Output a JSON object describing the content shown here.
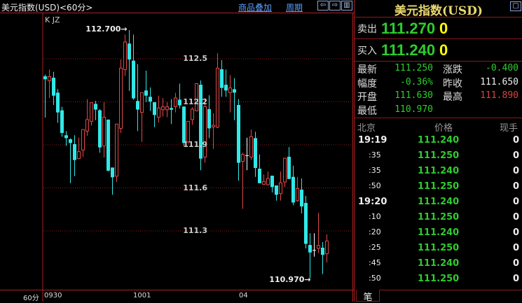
{
  "header": {
    "title": "美元指数(USD)<60分>",
    "overlay_link": "商品叠加",
    "period_link": "周期",
    "icons": [
      "arrow-left-icon",
      "arrow-right-icon",
      "panel-toggle-icon"
    ]
  },
  "chart": {
    "indicator_label": "K JZ",
    "period_label": "60分",
    "max_label": "112.700→",
    "min_label": "110.970→"
  },
  "chart_data": {
    "type": "candlestick",
    "yticks": [
      112.5,
      112.2,
      111.9,
      111.6,
      111.3
    ],
    "xticks": [
      "0930",
      "1001",
      "04"
    ],
    "grid": true,
    "colors": {
      "up": "#e04848",
      "down": "#30e8e8",
      "doji": "#ffffff",
      "grid": "#8a1a1a"
    },
    "ohlc": [
      [
        112.378,
        112.39,
        112.09,
        112.357
      ],
      [
        112.347,
        112.425,
        112.227,
        112.376
      ],
      [
        112.368,
        112.409,
        112.178,
        112.243
      ],
      [
        112.264,
        112.289,
        112.053,
        112.126
      ],
      [
        112.141,
        112.165,
        111.957,
        111.983
      ],
      [
        111.967,
        111.996,
        111.894,
        111.947
      ],
      [
        111.939,
        111.945,
        111.633,
        111.913
      ],
      [
        111.905,
        111.967,
        111.682,
        111.794
      ],
      [
        111.804,
        111.95,
        111.8,
        111.853
      ],
      [
        111.864,
        112.01,
        111.815,
        112.007
      ],
      [
        111.996,
        112.219,
        111.963,
        112.076
      ],
      [
        112.064,
        112.194,
        112.035,
        112.194
      ],
      [
        112.186,
        112.207,
        112.072,
        112.146
      ],
      [
        112.141,
        112.15,
        111.845,
        111.882
      ],
      [
        111.893,
        112.197,
        111.812,
        112.093
      ],
      [
        112.076,
        112.076,
        111.715,
        111.72
      ],
      [
        111.742,
        111.742,
        111.552,
        111.674
      ],
      [
        111.682,
        112.045,
        111.641,
        112.045
      ],
      [
        112.015,
        112.495,
        111.983,
        112.435
      ],
      [
        112.425,
        112.669,
        112.381,
        112.617
      ],
      [
        112.606,
        112.7,
        112.276,
        112.495
      ],
      [
        112.487,
        112.669,
        112.214,
        112.224
      ],
      [
        112.206,
        112.463,
        111.996,
        112.146
      ],
      [
        112.126,
        112.264,
        111.921,
        112.264
      ],
      [
        112.279,
        112.417,
        112.198,
        112.243
      ],
      [
        112.235,
        112.3,
        112.137,
        112.202
      ],
      [
        112.197,
        112.197,
        112.024,
        112.108
      ],
      [
        112.093,
        112.243,
        112.056,
        112.157
      ],
      [
        112.145,
        112.227,
        112.097,
        112.165
      ],
      [
        112.145,
        112.197,
        112.093,
        112.165
      ],
      [
        112.157,
        112.219,
        112.045,
        112.145
      ],
      [
        112.167,
        112.263,
        112.126,
        112.227
      ],
      [
        112.215,
        112.327,
        112.154,
        112.175
      ],
      [
        112.167,
        112.167,
        111.893,
        111.913
      ],
      [
        111.921,
        112.064,
        111.91,
        112.064
      ],
      [
        112.076,
        112.162,
        112.04,
        112.149
      ],
      [
        112.137,
        112.327,
        112.137,
        112.327
      ],
      [
        112.319,
        112.349,
        111.723,
        111.804
      ],
      [
        111.815,
        112.227,
        111.775,
        112.167
      ],
      [
        112.149,
        112.246,
        111.947,
        112.015
      ],
      [
        112.025,
        112.121,
        111.872,
        112.036
      ],
      [
        112.023,
        112.539,
        112.015,
        112.435
      ],
      [
        112.427,
        112.49,
        112.235,
        112.297
      ],
      [
        112.319,
        112.425,
        112.235,
        112.279
      ],
      [
        112.264,
        112.386,
        112.126,
        112.297
      ],
      [
        112.288,
        112.365,
        112.072,
        112.264
      ],
      [
        112.178,
        112.219,
        111.65,
        111.775
      ],
      [
        111.785,
        111.845,
        111.454,
        111.833
      ],
      [
        111.825,
        111.95,
        111.723,
        111.825
      ],
      [
        111.815,
        112.007,
        111.796,
        111.958
      ],
      [
        111.947,
        111.991,
        111.677,
        111.739
      ],
      [
        111.734,
        111.833,
        111.633,
        111.633
      ],
      [
        111.625,
        111.693,
        111.622,
        111.645
      ],
      [
        111.622,
        111.714,
        111.617,
        111.666
      ],
      [
        111.685,
        111.685,
        111.568,
        111.606
      ],
      [
        111.617,
        111.617,
        111.511,
        111.552
      ],
      [
        111.56,
        111.714,
        111.511,
        111.636
      ],
      [
        111.641,
        111.807,
        111.606,
        111.807
      ],
      [
        111.817,
        111.885,
        111.662,
        111.662
      ],
      [
        111.677,
        111.755,
        111.479,
        111.498
      ],
      [
        111.511,
        111.677,
        111.503,
        111.596
      ],
      [
        111.588,
        111.666,
        111.422,
        111.471
      ],
      [
        111.495,
        111.544,
        111.178,
        111.21
      ],
      [
        111.202,
        111.284,
        110.97,
        111.15
      ],
      [
        111.165,
        111.284,
        111.121,
        111.165
      ],
      [
        111.178,
        111.427,
        111.145,
        111.199
      ],
      [
        111.183,
        111.222,
        110.999,
        111.133
      ],
      [
        111.141,
        111.276,
        111.08,
        111.23
      ]
    ]
  },
  "quote": {
    "title": "美元指数(USD)",
    "sell_label": "卖出",
    "sell_price": "111.270",
    "sell_qty": "0",
    "buy_label": "买入",
    "buy_price": "111.240",
    "buy_qty": "0",
    "stats": [
      {
        "label": "最新",
        "value": "111.250",
        "color": "g"
      },
      {
        "label": "涨跌",
        "value": "-0.400",
        "color": "g"
      },
      {
        "label": "幅度",
        "value": "-0.36%",
        "color": "g"
      },
      {
        "label": "昨收",
        "value": "111.650",
        "color": "w"
      },
      {
        "label": "开盘",
        "value": "111.630",
        "color": "g"
      },
      {
        "label": "最高",
        "value": "111.890",
        "color": "r"
      },
      {
        "label": "最低",
        "value": "110.970",
        "color": "g"
      }
    ]
  },
  "ticks": {
    "headers": [
      "北京",
      "价格",
      "现手"
    ],
    "rows": [
      {
        "time": "19:19",
        "price": "111.240",
        "vol": "0",
        "major": true
      },
      {
        "time": ":35",
        "price": "111.250",
        "vol": "0"
      },
      {
        "time": ":35",
        "price": "111.240",
        "vol": "0"
      },
      {
        "time": ":50",
        "price": "111.250",
        "vol": "0"
      },
      {
        "time": "19:20",
        "price": "111.240",
        "vol": "0",
        "major": true
      },
      {
        "time": ":10",
        "price": "111.250",
        "vol": "0"
      },
      {
        "time": ":20",
        "price": "111.240",
        "vol": "0"
      },
      {
        "time": ":25",
        "price": "111.250",
        "vol": "0"
      },
      {
        "time": ":45",
        "price": "111.240",
        "vol": "0"
      },
      {
        "time": ":50",
        "price": "111.250",
        "vol": "0"
      }
    ],
    "tab_label": "笔"
  }
}
